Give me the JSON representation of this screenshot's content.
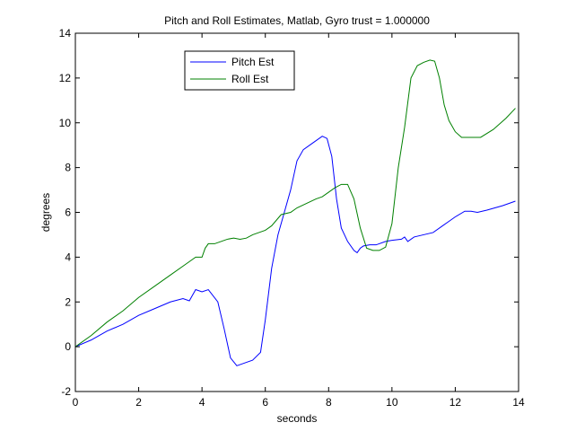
{
  "chart_data": {
    "type": "line",
    "title": "Pitch and Roll Estimates, Matlab, Gyro trust = 1.000000",
    "xlabel": "seconds",
    "ylabel": "degrees",
    "xlim": [
      0,
      14
    ],
    "ylim": [
      -2,
      14
    ],
    "xticks": [
      0,
      2,
      4,
      6,
      8,
      10,
      12,
      14
    ],
    "yticks": [
      -2,
      0,
      2,
      4,
      6,
      8,
      10,
      12,
      14
    ],
    "xtick_labels": [
      "0",
      "2",
      "4",
      "6",
      "8",
      "10",
      "12",
      "14"
    ],
    "ytick_labels": [
      "-2",
      "0",
      "2",
      "4",
      "6",
      "8",
      "10",
      "12",
      "14"
    ],
    "grid": false,
    "legend_position": "top-left",
    "series": [
      {
        "name": "Pitch Est",
        "color": "#0000ff",
        "x": [
          0,
          0.5,
          1,
          1.5,
          2,
          2.5,
          3,
          3.4,
          3.6,
          3.8,
          4.0,
          4.2,
          4.5,
          4.7,
          4.9,
          5.1,
          5.3,
          5.6,
          5.85,
          6.0,
          6.2,
          6.4,
          6.6,
          6.8,
          7.0,
          7.2,
          7.5,
          7.8,
          7.95,
          8.1,
          8.25,
          8.4,
          8.6,
          8.8,
          8.9,
          9.0,
          9.1,
          9.3,
          9.5,
          9.8,
          10.0,
          10.3,
          10.4,
          10.5,
          10.7,
          11.0,
          11.3,
          11.6,
          11.8,
          12.0,
          12.3,
          12.5,
          12.7,
          13.0,
          13.5,
          13.9
        ],
        "y": [
          0,
          0.3,
          0.7,
          1.0,
          1.4,
          1.7,
          2.0,
          2.15,
          2.05,
          2.55,
          2.45,
          2.55,
          2.0,
          0.8,
          -0.5,
          -0.85,
          -0.75,
          -0.6,
          -0.25,
          1.2,
          3.5,
          5.0,
          6.0,
          7.0,
          8.3,
          8.8,
          9.1,
          9.4,
          9.3,
          8.5,
          6.6,
          5.3,
          4.7,
          4.3,
          4.2,
          4.4,
          4.5,
          4.55,
          4.55,
          4.7,
          4.75,
          4.8,
          4.9,
          4.7,
          4.9,
          5.0,
          5.1,
          5.4,
          5.6,
          5.8,
          6.05,
          6.05,
          6.0,
          6.1,
          6.3,
          6.5
        ]
      },
      {
        "name": "Roll Est",
        "color": "#008000",
        "x": [
          0,
          0.5,
          1,
          1.5,
          2,
          2.5,
          3,
          3.5,
          3.8,
          4.0,
          4.1,
          4.2,
          4.4,
          4.6,
          4.8,
          5.0,
          5.2,
          5.4,
          5.6,
          5.8,
          6.0,
          6.2,
          6.5,
          6.8,
          7.0,
          7.3,
          7.6,
          7.8,
          8.0,
          8.2,
          8.4,
          8.6,
          8.8,
          9.0,
          9.2,
          9.4,
          9.6,
          9.8,
          10.0,
          10.2,
          10.4,
          10.6,
          10.8,
          11.0,
          11.2,
          11.35,
          11.5,
          11.65,
          11.8,
          12.0,
          12.2,
          12.5,
          12.8,
          13.2,
          13.6,
          13.9
        ],
        "y": [
          0,
          0.5,
          1.1,
          1.6,
          2.2,
          2.7,
          3.2,
          3.7,
          4.0,
          4.0,
          4.4,
          4.6,
          4.6,
          4.7,
          4.8,
          4.85,
          4.8,
          4.85,
          5.0,
          5.1,
          5.2,
          5.4,
          5.9,
          6.0,
          6.2,
          6.4,
          6.6,
          6.7,
          6.9,
          7.1,
          7.25,
          7.25,
          6.6,
          5.3,
          4.4,
          4.3,
          4.3,
          4.45,
          5.5,
          8.0,
          9.8,
          12.0,
          12.55,
          12.7,
          12.8,
          12.75,
          12.0,
          10.8,
          10.1,
          9.6,
          9.35,
          9.35,
          9.35,
          9.7,
          10.2,
          10.65
        ]
      }
    ]
  }
}
